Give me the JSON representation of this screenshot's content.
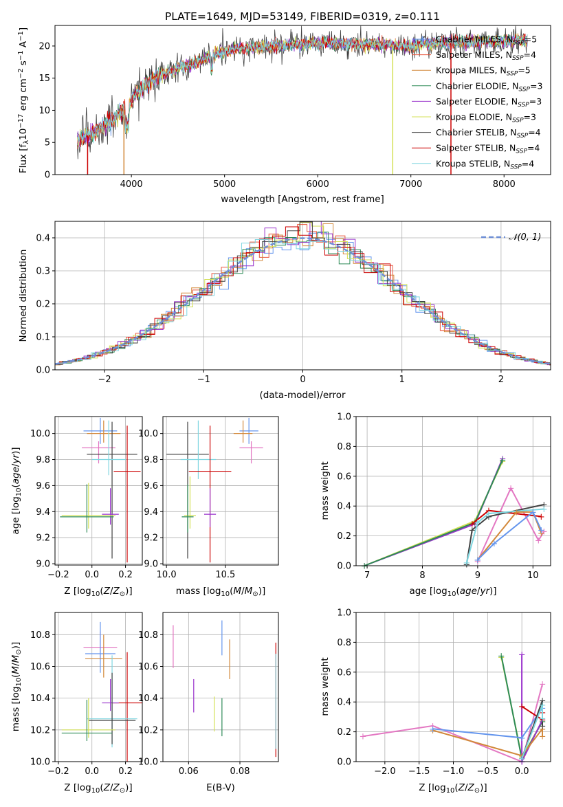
{
  "chart_data": [
    {
      "type": "line",
      "title": "PLATE=1649, MJD=53149, FIBERID=0319, z=0.111",
      "xlabel": "wavelength [Angstrom, rest frame]",
      "ylabel": "Flux [fλ10⁻¹⁷ erg cm⁻² s⁻¹ A⁻¹]",
      "xlim": [
        3180,
        8500
      ],
      "ylim": [
        0,
        23.2
      ],
      "xticks": [
        "4000",
        "5000",
        "6000",
        "7000",
        "8000"
      ],
      "yticks": [
        "0",
        "5",
        "10",
        "15",
        "20"
      ],
      "legend_position": "right",
      "series": [
        {
          "name": "Chabrier MILES, N_SSP=5",
          "color": "#6495ED"
        },
        {
          "name": "Salpeter MILES, N_SSP=4",
          "color": "#E9573F"
        },
        {
          "name": "Kroupa MILES, N_SSP=5",
          "color": "#D2883A"
        },
        {
          "name": "Chabrier ELODIE, N_SSP=3",
          "color": "#2E8B57"
        },
        {
          "name": "Salpeter ELODIE, N_SSP=3",
          "color": "#9932CC"
        },
        {
          "name": "Kroupa ELODIE, N_SSP=3",
          "color": "#D4E157"
        },
        {
          "name": "Chabrier STELIB, N_SSP=4",
          "color": "#404040"
        },
        {
          "name": "Salpeter STELIB, N_SSP=4",
          "color": "#CC0000"
        },
        {
          "name": "Kroupa STELIB, N_SSP=4",
          "color": "#7ED6E0"
        }
      ],
      "continuum": {
        "x": [
          3420,
          3600,
          3800,
          3950,
          4050,
          4150,
          4300,
          4500,
          4700,
          4900,
          5100,
          5300,
          5500,
          5800,
          6100,
          6400,
          6700,
          7000,
          7300,
          7600,
          7900,
          8250
        ],
        "y": [
          5.5,
          6.5,
          8.5,
          10.5,
          12.5,
          14,
          15.3,
          16.5,
          17.5,
          18.8,
          19.5,
          19.8,
          20,
          20.2,
          20.5,
          20.3,
          20.2,
          20,
          20.5,
          20.6,
          20.7,
          21
        ]
      }
    },
    {
      "type": "line",
      "xlabel": "(data-model)/error",
      "ylabel": "Normed distribution",
      "xlim": [
        -2.5,
        2.5
      ],
      "ylim": [
        0,
        0.45
      ],
      "xticks": [
        "−2",
        "−1",
        "0",
        "1",
        "2"
      ],
      "yticks": [
        "0.0",
        "0.1",
        "0.2",
        "0.3",
        "0.4"
      ],
      "legend": "𝒩(0, 1)",
      "legend_position": "top-right",
      "grid": true
    },
    {
      "type": "scatter",
      "xlabel": "Z [log₁₀(Z/Z☉)]",
      "ylabel": "age  [log₁₀(age/yr)]",
      "xlim": [
        -0.22,
        0.3
      ],
      "ylim": [
        8.99,
        10.13
      ],
      "xticks": [
        "−0.2",
        "0.0",
        "0.2"
      ],
      "yticks": [
        "9.0",
        "9.2",
        "9.4",
        "9.6",
        "9.8",
        "10.0"
      ],
      "grid": true,
      "points": [
        {
          "x": 0.05,
          "y": 10.02,
          "color": "#6495ED"
        },
        {
          "x": 0.07,
          "y": 10.0,
          "color": "#D2883A"
        },
        {
          "x": 0.04,
          "y": 9.89,
          "color": "#E377C2"
        },
        {
          "x": 0.12,
          "y": 9.84,
          "color": "#404040"
        },
        {
          "x": 0.1,
          "y": 9.8,
          "color": "#7ED6E0"
        },
        {
          "x": 0.21,
          "y": 9.71,
          "color": "#CC0000"
        },
        {
          "x": 0.11,
          "y": 9.38,
          "color": "#9932CC"
        },
        {
          "x": -0.02,
          "y": 9.37,
          "color": "#D4E157"
        },
        {
          "x": -0.03,
          "y": 9.36,
          "color": "#2E8B57"
        }
      ]
    },
    {
      "type": "scatter",
      "xlabel": "mass [log₁₀(M/M☉)]",
      "xlim": [
        9.97,
        10.95
      ],
      "ylim": [
        8.99,
        10.13
      ],
      "xticks": [
        "10.0",
        "10.5"
      ],
      "yticks": [
        "9.0",
        "9.2",
        "9.4",
        "9.6",
        "9.8",
        "10.0"
      ],
      "grid": true,
      "points": [
        {
          "x": 10.7,
          "y": 10.02,
          "color": "#6495ED"
        },
        {
          "x": 10.65,
          "y": 10.0,
          "color": "#D2883A"
        },
        {
          "x": 10.72,
          "y": 9.89,
          "color": "#E377C2"
        },
        {
          "x": 10.18,
          "y": 9.84,
          "color": "#404040"
        },
        {
          "x": 10.27,
          "y": 9.8,
          "color": "#7ED6E0"
        },
        {
          "x": 10.37,
          "y": 9.71,
          "color": "#CC0000"
        },
        {
          "x": 10.37,
          "y": 9.38,
          "color": "#9932CC"
        },
        {
          "x": 10.2,
          "y": 9.37,
          "color": "#D4E157"
        },
        {
          "x": 10.18,
          "y": 9.36,
          "color": "#2E8B57"
        }
      ]
    },
    {
      "type": "line",
      "xlabel": "age  [log₁₀(age/yr)]",
      "ylabel": "mass weight",
      "xlim": [
        6.8,
        10.32
      ],
      "ylim": [
        0,
        1
      ],
      "xticks": [
        "7",
        "8",
        "9",
        "10"
      ],
      "yticks": [
        "0.0",
        "0.2",
        "0.4",
        "0.6",
        "0.8",
        "1.0"
      ],
      "grid": true,
      "series": [
        {
          "color": "#D4E157",
          "x": [
            6.95,
            8.95,
            9.45
          ],
          "y": [
            0.0,
            0.3,
            0.7
          ]
        },
        {
          "color": "#9932CC",
          "x": [
            6.95,
            8.95,
            9.45
          ],
          "y": [
            0.0,
            0.28,
            0.72
          ]
        },
        {
          "color": "#2E8B57",
          "x": [
            6.95,
            8.95,
            9.45
          ],
          "y": [
            0.0,
            0.29,
            0.71
          ]
        },
        {
          "color": "#E377C2",
          "x": [
            9.0,
            9.6,
            10.1,
            10.2
          ],
          "y": [
            0.03,
            0.52,
            0.17,
            0.23
          ]
        },
        {
          "color": "#CC0000",
          "x": [
            8.9,
            9.2,
            10.15
          ],
          "y": [
            0.28,
            0.37,
            0.33
          ]
        },
        {
          "color": "#404040",
          "x": [
            8.8,
            8.9,
            9.2,
            10.2
          ],
          "y": [
            0.01,
            0.24,
            0.33,
            0.41
          ]
        },
        {
          "color": "#7ED6E0",
          "x": [
            8.8,
            9.0,
            9.2,
            10.2
          ],
          "y": [
            0.02,
            0.29,
            0.35,
            0.38
          ]
        },
        {
          "color": "#D2883A",
          "x": [
            9.0,
            9.7,
            10.0,
            10.15
          ],
          "y": [
            0.04,
            0.36,
            0.36,
            0.22
          ]
        },
        {
          "color": "#6495ED",
          "x": [
            9.0,
            9.3,
            10.0,
            10.15
          ],
          "y": [
            0.04,
            0.15,
            0.36,
            0.24
          ]
        }
      ]
    },
    {
      "type": "scatter",
      "xlabel": "Z [log₁₀(Z/Z☉)]",
      "ylabel": "mass [log₁₀(M/M☉)]",
      "xlim": [
        -0.22,
        0.3
      ],
      "ylim": [
        10.0,
        10.94
      ],
      "xticks": [
        "−0.2",
        "0.0",
        "0.2"
      ],
      "yticks": [
        "10.0",
        "10.2",
        "10.4",
        "10.6",
        "10.8"
      ],
      "grid": true,
      "points": [
        {
          "x": 0.05,
          "y": 10.72,
          "color": "#E377C2"
        },
        {
          "x": 0.05,
          "y": 10.68,
          "color": "#6495ED"
        },
        {
          "x": 0.07,
          "y": 10.65,
          "color": "#D2883A"
        },
        {
          "x": 0.21,
          "y": 10.37,
          "color": "#CC0000"
        },
        {
          "x": 0.11,
          "y": 10.37,
          "color": "#9932CC"
        },
        {
          "x": 0.12,
          "y": 10.27,
          "color": "#7ED6E0"
        },
        {
          "x": 0.12,
          "y": 10.26,
          "color": "#404040"
        },
        {
          "x": -0.02,
          "y": 10.2,
          "color": "#D4E157"
        },
        {
          "x": -0.03,
          "y": 10.18,
          "color": "#2E8B57"
        }
      ]
    },
    {
      "type": "scatter",
      "xlabel": "E(B-V)",
      "xlim": [
        0.05,
        0.095
      ],
      "ylim": [
        10.0,
        10.94
      ],
      "xticks": [
        "0.06",
        "0.08"
      ],
      "yticks": [
        "10.0",
        "10.2",
        "10.4",
        "10.6",
        "10.8"
      ],
      "grid": true,
      "points": [
        {
          "x": 0.054,
          "y": 10.72,
          "color": "#E377C2"
        },
        {
          "x": 0.073,
          "y": 10.78,
          "color": "#6495ED"
        },
        {
          "x": 0.076,
          "y": 10.65,
          "color": "#D2883A"
        },
        {
          "x": 0.062,
          "y": 10.42,
          "color": "#9932CC"
        },
        {
          "x": 0.07,
          "y": 10.3,
          "color": "#D4E157"
        },
        {
          "x": 0.073,
          "y": 10.28,
          "color": "#2E8B57"
        },
        {
          "x": 0.094,
          "y": 10.4,
          "color": "#CC0000"
        },
        {
          "x": 0.094,
          "y": 10.38,
          "color": "#7ED6E0"
        }
      ]
    },
    {
      "type": "line",
      "xlabel": "Z [log₁₀(Z/Z☉)]",
      "ylabel": "mass weight",
      "xlim": [
        -2.42,
        0.42
      ],
      "ylim": [
        0,
        1
      ],
      "xticks": [
        "−2.0",
        "−1.5",
        "−1.0",
        "−0.5",
        "0.0"
      ],
      "yticks": [
        "0.0",
        "0.2",
        "0.4",
        "0.6",
        "0.8",
        "1.0"
      ],
      "grid": true,
      "series": [
        {
          "color": "#E377C2",
          "x": [
            -2.32,
            -1.3,
            0.0,
            0.3
          ],
          "y": [
            0.17,
            0.24,
            0.0,
            0.52
          ]
        },
        {
          "color": "#D4E157",
          "x": [
            -0.3,
            0.0,
            0.3
          ],
          "y": [
            0.7,
            0.03,
            0.27
          ]
        },
        {
          "color": "#2E8B57",
          "x": [
            -0.3,
            0.0,
            0.3
          ],
          "y": [
            0.71,
            0.02,
            0.27
          ]
        },
        {
          "color": "#9932CC",
          "x": [
            0.0,
            0.0,
            0.3
          ],
          "y": [
            0.72,
            0.0,
            0.28
          ]
        },
        {
          "color": "#CC0000",
          "x": [
            0.0,
            0.3,
            0.3
          ],
          "y": [
            0.37,
            0.28,
            0.33
          ]
        },
        {
          "color": "#D2883A",
          "x": [
            -1.3,
            0.0,
            0.3,
            0.3
          ],
          "y": [
            0.21,
            0.04,
            0.22,
            0.17
          ]
        },
        {
          "color": "#6495ED",
          "x": [
            -1.3,
            0.0,
            0.3
          ],
          "y": [
            0.22,
            0.16,
            0.36
          ]
        },
        {
          "color": "#404040",
          "x": [
            0.0,
            0.3,
            0.3
          ],
          "y": [
            0.02,
            0.41,
            0.24
          ]
        },
        {
          "color": "#7ED6E0",
          "x": [
            0.0,
            0.3,
            0.3
          ],
          "y": [
            0.02,
            0.38,
            0.29
          ]
        }
      ]
    }
  ]
}
